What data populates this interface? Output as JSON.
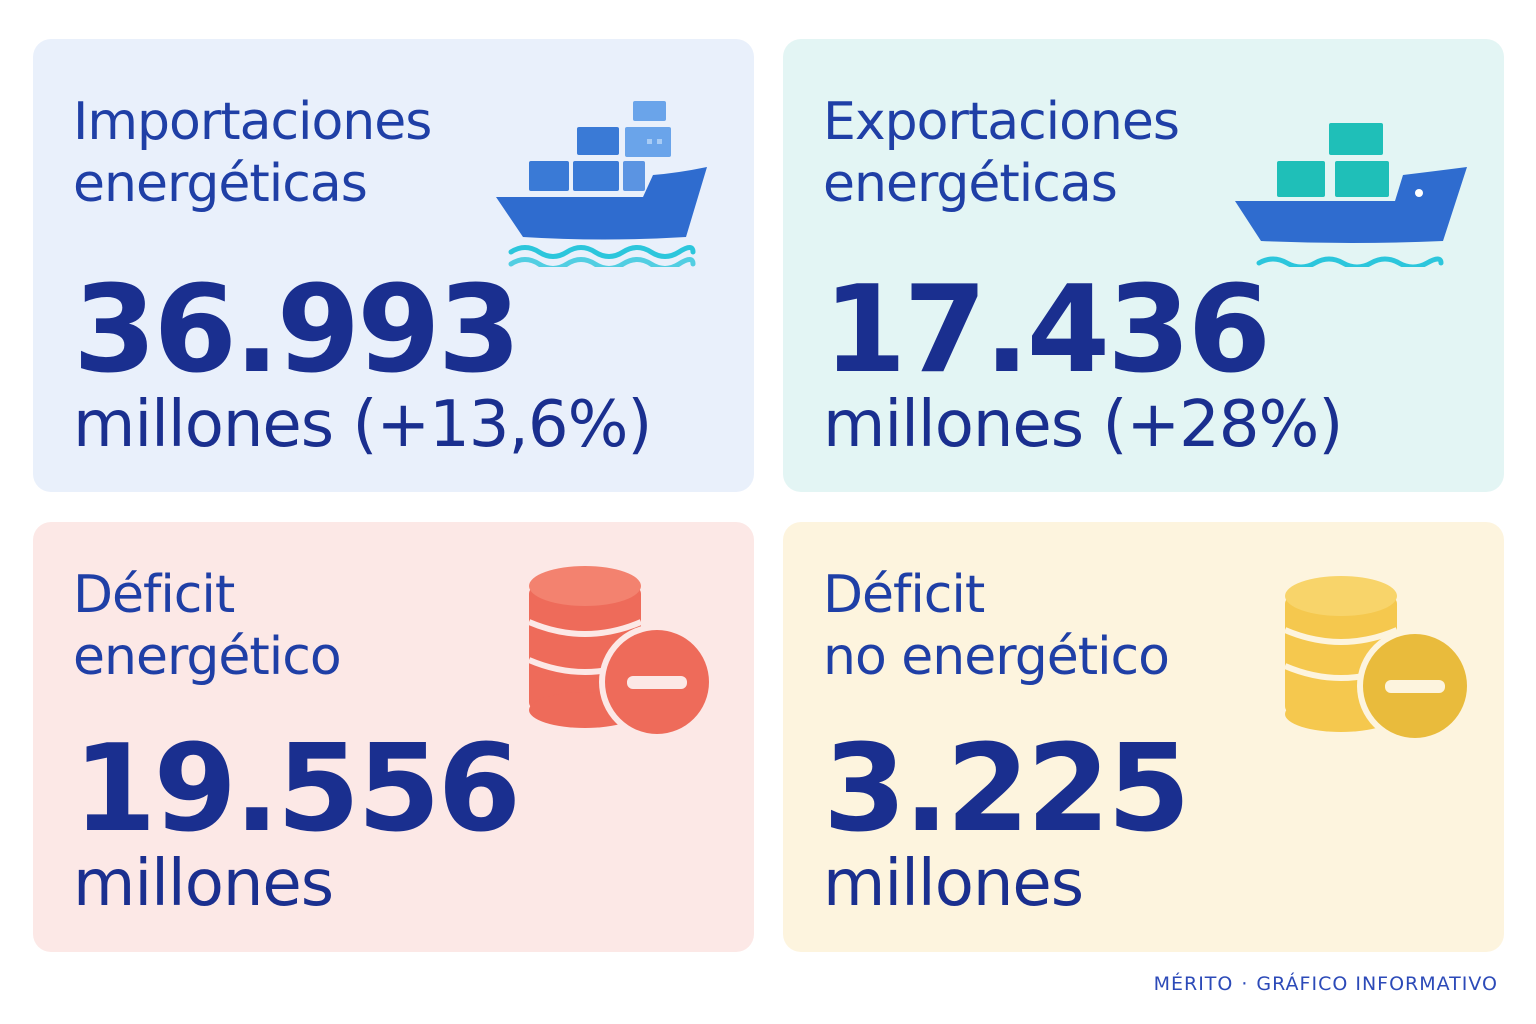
{
  "cards": {
    "imports": {
      "title_line1": "Importaciones",
      "title_line2": "energéticas",
      "value": "36.993",
      "unit": "millones (+13,6%)",
      "icon": "cargo-ship-icon",
      "background": "#e9f0fb"
    },
    "exports": {
      "title_line1": "Exportaciones",
      "title_line2": "energéticas",
      "value": "17.436",
      "unit": "millones (+28%)",
      "icon": "cargo-ship-icon",
      "background": "#e3f5f4"
    },
    "deficit_energy": {
      "title_line1": "Déficit",
      "title_line2": "energético",
      "value": "19.556",
      "unit": "millones",
      "icon": "coins-minus-icon",
      "background": "#fce8e6"
    },
    "deficit_nonenergy": {
      "title_line1": "Déficit",
      "title_line2": "no energético",
      "value": "3.225",
      "unit": "millones",
      "icon": "coins-minus-icon",
      "background": "#fdf4de"
    }
  },
  "footer": {
    "brand": "MÉRITO",
    "separator": "·",
    "label": "GRÁFICO INFORMATIVO"
  },
  "colors": {
    "title": "#1f3fa6",
    "value": "#1a2f8f",
    "ship_hull": "#2f6ccf",
    "containers_blue": "#3a7ad6",
    "containers_teal": "#1fbfb8",
    "waves": "#2cc6dc",
    "coins_red": "#ee6b5a",
    "coins_yellow": "#f5c84e"
  }
}
